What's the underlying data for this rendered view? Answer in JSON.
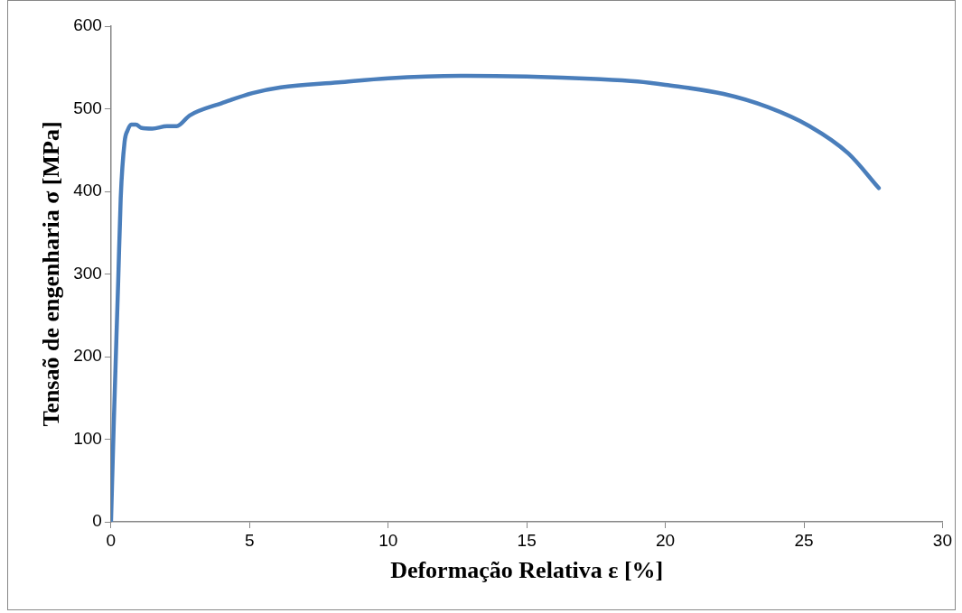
{
  "chart_data": {
    "type": "line",
    "xlabel": "Deformação Relativa ε [%]",
    "ylabel": "Tensaõ de engenharia σ [MPa]",
    "series": [
      {
        "color": "#4a7ebb",
        "x": [
          0,
          0.1,
          0.26,
          0.35,
          0.49,
          0.6,
          0.73,
          0.9,
          1.08,
          1.49,
          2.02,
          2.37,
          2.84,
          4.01,
          5.1,
          6.13,
          8.2,
          10,
          12.84,
          15,
          17.5,
          19,
          20,
          22.1,
          23.7,
          25.2,
          26.6,
          27.7
        ],
        "values": [
          0,
          120,
          292,
          392,
          460,
          474,
          481,
          481,
          477,
          476,
          479,
          479,
          492,
          507,
          519,
          526,
          532,
          537,
          540,
          539,
          536,
          533,
          529,
          518,
          502,
          479,
          446,
          404
        ]
      }
    ],
    "xlim": [
      0,
      30
    ],
    "xticks": [
      0,
      5,
      10,
      15,
      20,
      25,
      30
    ],
    "ylim": [
      0,
      600
    ],
    "yticks": [
      0,
      100,
      200,
      300,
      400,
      500,
      600
    ],
    "grid": false,
    "legend": false,
    "marker": "none",
    "line_style": "solid"
  }
}
